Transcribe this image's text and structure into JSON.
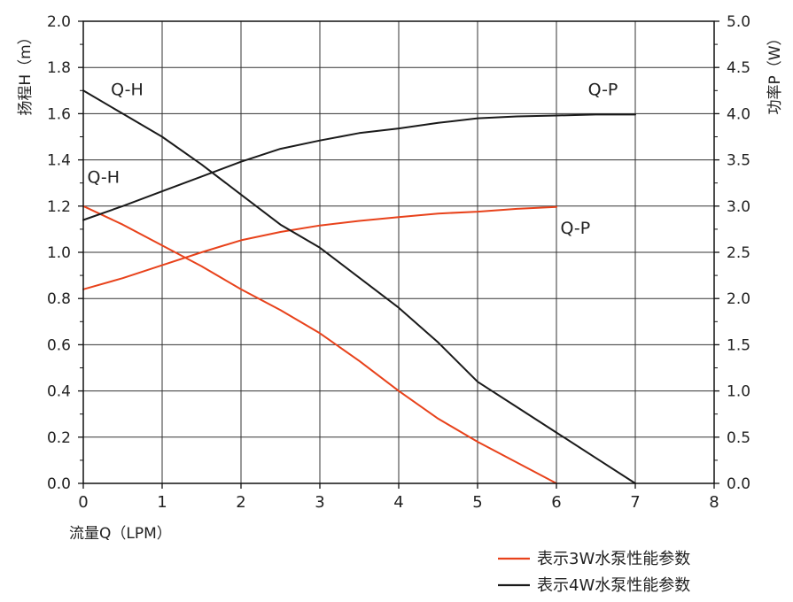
{
  "chart_data": {
    "type": "line",
    "title": "",
    "xlabel": "流量Q（LPM）",
    "ylabel_left": "扬程H（m）",
    "ylabel_right": "功率P（W）",
    "xlim": [
      0,
      8
    ],
    "ylim_left": [
      0,
      2.0
    ],
    "ylim_right": [
      0,
      5.0
    ],
    "x_ticks": [
      "0",
      "1",
      "2",
      "3",
      "4",
      "5",
      "6",
      "7",
      "8"
    ],
    "y_left_ticks": [
      "0.0",
      "0.2",
      "0.4",
      "0.6",
      "0.8",
      "1.0",
      "1.2",
      "1.4",
      "1.6",
      "1.8",
      "2.0"
    ],
    "y_right_ticks": [
      "0.0",
      "0.5",
      "1.0",
      "1.5",
      "2.0",
      "2.5",
      "3.0",
      "3.5",
      "4.0",
      "4.5",
      "5.0"
    ],
    "grid": true,
    "legend_position": "bottom-right",
    "series": [
      {
        "name": "表示3W水泵性能参数",
        "curve": "Q-H",
        "axis": "left",
        "color": "#e8421b",
        "x": [
          0,
          0.5,
          1,
          1.5,
          2,
          2.5,
          3,
          3.5,
          4,
          4.5,
          5,
          5.5,
          6
        ],
        "y": [
          1.2,
          1.12,
          1.03,
          0.94,
          0.84,
          0.75,
          0.65,
          0.53,
          0.4,
          0.28,
          0.18,
          0.09,
          0.0
        ]
      },
      {
        "name": "表示3W水泵性能参数",
        "curve": "Q-P",
        "axis": "right",
        "color": "#e8421b",
        "x": [
          0,
          0.5,
          1,
          1.5,
          2,
          2.5,
          3,
          3.5,
          4,
          4.5,
          5,
          5.5,
          6
        ],
        "y": [
          2.1,
          2.22,
          2.36,
          2.5,
          2.63,
          2.72,
          2.79,
          2.84,
          2.88,
          2.92,
          2.94,
          2.97,
          2.99
        ]
      },
      {
        "name": "表示4W水泵性能参数",
        "curve": "Q-H",
        "axis": "left",
        "color": "#1a1a1a",
        "x": [
          0,
          0.5,
          1,
          1.5,
          2,
          2.5,
          3,
          3.5,
          4,
          4.5,
          5,
          5.5,
          6,
          6.5,
          7
        ],
        "y": [
          1.7,
          1.6,
          1.5,
          1.38,
          1.25,
          1.12,
          1.02,
          0.89,
          0.76,
          0.61,
          0.44,
          0.33,
          0.22,
          0.11,
          0.0
        ]
      },
      {
        "name": "表示4W水泵性能参数",
        "curve": "Q-P",
        "axis": "right",
        "color": "#1a1a1a",
        "x": [
          0,
          0.5,
          1,
          1.5,
          2,
          2.5,
          3,
          3.5,
          4,
          4.5,
          5,
          5.5,
          6,
          6.5,
          7
        ],
        "y": [
          2.85,
          3.0,
          3.16,
          3.32,
          3.48,
          3.62,
          3.71,
          3.79,
          3.84,
          3.9,
          3.95,
          3.97,
          3.98,
          3.99,
          3.99
        ]
      }
    ],
    "annotations": [
      {
        "text": "Q-H",
        "color": "#1a1a1a",
        "near_x": 0.35,
        "near_y_left": 1.68
      },
      {
        "text": "Q-P",
        "color": "#1a1a1a",
        "near_x": 6.4,
        "near_y_left": 1.68
      },
      {
        "text": "Q-H",
        "color": "#1a1a1a",
        "near_x": 0.05,
        "near_y_left": 1.3
      },
      {
        "text": "Q-P",
        "color": "#1a1a1a",
        "near_x": 6.05,
        "near_y_left": 1.08
      }
    ],
    "legend": [
      {
        "label": "表示3W水泵性能参数",
        "color": "#e8421b"
      },
      {
        "label": "表示4W水泵性能参数",
        "color": "#1a1a1a"
      }
    ]
  }
}
